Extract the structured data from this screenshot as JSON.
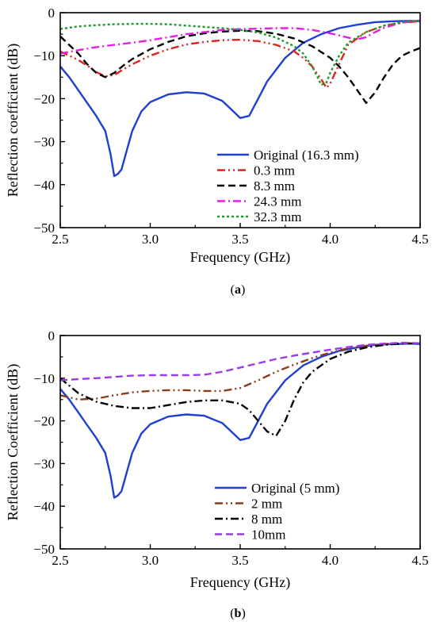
{
  "chart_data": [
    {
      "type": "line",
      "caption_letter": "a",
      "xlabel": "Frequency (GHz)",
      "ylabel": "Reflection coefficient (dB)",
      "xlim": [
        2.5,
        4.5
      ],
      "ylim": [
        -50,
        0
      ],
      "xticks": [
        "2.5",
        "3.0",
        "3.5",
        "4.0",
        "4.5"
      ],
      "yticks": [
        "0",
        "−10",
        "−20",
        "−30",
        "−40",
        "−50"
      ],
      "xtick_values": [
        2.5,
        3.0,
        3.5,
        4.0,
        4.5
      ],
      "ytick_values": [
        0,
        -10,
        -20,
        -30,
        -40,
        -50
      ],
      "legend_position": "bottom-right",
      "series": [
        {
          "name": "Original (16.3 mm)",
          "color": "#1f3fd1",
          "dash": "solid",
          "points": [
            [
              2.5,
              -12.5
            ],
            [
              2.55,
              -15
            ],
            [
              2.6,
              -18
            ],
            [
              2.65,
              -21
            ],
            [
              2.7,
              -24
            ],
            [
              2.75,
              -27.5
            ],
            [
              2.78,
              -33
            ],
            [
              2.8,
              -38
            ],
            [
              2.82,
              -37.5
            ],
            [
              2.84,
              -36.5
            ],
            [
              2.87,
              -32
            ],
            [
              2.9,
              -27.5
            ],
            [
              2.95,
              -23
            ],
            [
              3.0,
              -20.8
            ],
            [
              3.1,
              -19
            ],
            [
              3.2,
              -18.5
            ],
            [
              3.3,
              -18.8
            ],
            [
              3.4,
              -20.5
            ],
            [
              3.45,
              -22.5
            ],
            [
              3.5,
              -24.5
            ],
            [
              3.55,
              -24
            ],
            [
              3.6,
              -20
            ],
            [
              3.65,
              -16
            ],
            [
              3.75,
              -10.5
            ],
            [
              3.85,
              -7
            ],
            [
              3.95,
              -5
            ],
            [
              4.05,
              -3.6
            ],
            [
              4.15,
              -2.8
            ],
            [
              4.25,
              -2.2
            ],
            [
              4.35,
              -2
            ],
            [
              4.45,
              -1.9
            ],
            [
              4.5,
              -2
            ]
          ]
        },
        {
          "name": "0.3 mm",
          "color": "#e0231e",
          "dash": "dashdotdot",
          "points": [
            [
              2.5,
              -9
            ],
            [
              2.55,
              -10
            ],
            [
              2.6,
              -11
            ],
            [
              2.65,
              -12.3
            ],
            [
              2.7,
              -13.8
            ],
            [
              2.75,
              -14.8
            ],
            [
              2.8,
              -14.5
            ],
            [
              2.85,
              -13.2
            ],
            [
              2.9,
              -12
            ],
            [
              3.0,
              -10
            ],
            [
              3.1,
              -8.5
            ],
            [
              3.2,
              -7.4
            ],
            [
              3.3,
              -6.8
            ],
            [
              3.4,
              -6.4
            ],
            [
              3.5,
              -6.3
            ],
            [
              3.6,
              -6.6
            ],
            [
              3.7,
              -7.5
            ],
            [
              3.8,
              -9
            ],
            [
              3.85,
              -10.5
            ],
            [
              3.9,
              -12.5
            ],
            [
              3.95,
              -15.5
            ],
            [
              3.98,
              -17.5
            ],
            [
              4.0,
              -16.5
            ],
            [
              4.05,
              -12
            ],
            [
              4.1,
              -7.5
            ],
            [
              4.2,
              -4.5
            ],
            [
              4.3,
              -3
            ],
            [
              4.4,
              -2.3
            ],
            [
              4.5,
              -2
            ]
          ]
        },
        {
          "name": "8.3 mm",
          "color": "#000000",
          "dash": "dash",
          "points": [
            [
              2.5,
              -5.5
            ],
            [
              2.55,
              -7.5
            ],
            [
              2.6,
              -9.5
            ],
            [
              2.65,
              -12
            ],
            [
              2.7,
              -14
            ],
            [
              2.75,
              -15
            ],
            [
              2.8,
              -14
            ],
            [
              2.85,
              -12.3
            ],
            [
              2.9,
              -10.8
            ],
            [
              3.0,
              -8.5
            ],
            [
              3.1,
              -6.8
            ],
            [
              3.2,
              -5.5
            ],
            [
              3.3,
              -4.8
            ],
            [
              3.4,
              -4.4
            ],
            [
              3.5,
              -4.2
            ],
            [
              3.6,
              -4.3
            ],
            [
              3.7,
              -4.9
            ],
            [
              3.8,
              -6
            ],
            [
              3.9,
              -7.8
            ],
            [
              4.0,
              -10.5
            ],
            [
              4.05,
              -12.5
            ],
            [
              4.1,
              -15
            ],
            [
              4.15,
              -18
            ],
            [
              4.2,
              -21
            ],
            [
              4.25,
              -18.5
            ],
            [
              4.3,
              -15
            ],
            [
              4.35,
              -12
            ],
            [
              4.4,
              -10
            ],
            [
              4.45,
              -9
            ],
            [
              4.5,
              -8.2
            ]
          ]
        },
        {
          "name": "24.3 mm",
          "color": "#e61ee6",
          "dash": "dashdot",
          "points": [
            [
              2.5,
              -9.5
            ],
            [
              2.6,
              -8.7
            ],
            [
              2.7,
              -8
            ],
            [
              2.8,
              -7.5
            ],
            [
              2.9,
              -7
            ],
            [
              3.0,
              -6.4
            ],
            [
              3.1,
              -5.7
            ],
            [
              3.2,
              -5
            ],
            [
              3.3,
              -4.5
            ],
            [
              3.4,
              -4
            ],
            [
              3.5,
              -3.8
            ],
            [
              3.6,
              -3.7
            ],
            [
              3.7,
              -3.6
            ],
            [
              3.8,
              -3.6
            ],
            [
              3.9,
              -4
            ],
            [
              4.0,
              -4.8
            ],
            [
              4.1,
              -5.8
            ],
            [
              4.15,
              -6.2
            ],
            [
              4.2,
              -5.7
            ],
            [
              4.25,
              -4.5
            ],
            [
              4.3,
              -3.5
            ],
            [
              4.4,
              -2.3
            ],
            [
              4.5,
              -1.8
            ]
          ]
        },
        {
          "name": "32.3 mm",
          "color": "#1f9a2e",
          "dash": "dot",
          "points": [
            [
              2.5,
              -3.8
            ],
            [
              2.6,
              -3.2
            ],
            [
              2.7,
              -2.9
            ],
            [
              2.8,
              -2.7
            ],
            [
              2.9,
              -2.6
            ],
            [
              3.0,
              -2.6
            ],
            [
              3.1,
              -2.7
            ],
            [
              3.2,
              -3
            ],
            [
              3.3,
              -3.3
            ],
            [
              3.4,
              -3.6
            ],
            [
              3.5,
              -4
            ],
            [
              3.6,
              -4.6
            ],
            [
              3.7,
              -5.8
            ],
            [
              3.8,
              -7.8
            ],
            [
              3.85,
              -9.5
            ],
            [
              3.9,
              -12.5
            ],
            [
              3.93,
              -15
            ],
            [
              3.95,
              -16.8
            ],
            [
              3.98,
              -16.2
            ],
            [
              4.0,
              -14
            ],
            [
              4.05,
              -10
            ],
            [
              4.1,
              -7
            ],
            [
              4.2,
              -4.5
            ],
            [
              4.3,
              -3
            ],
            [
              4.4,
              -2.2
            ],
            [
              4.5,
              -1.8
            ]
          ]
        }
      ]
    },
    {
      "type": "line",
      "caption_letter": "b",
      "xlabel": "Frequency (GHz)",
      "ylabel": "Reflection Coefficient (dB)",
      "xlim": [
        2.5,
        4.5
      ],
      "ylim": [
        -50,
        0
      ],
      "xticks": [
        "2.5",
        "3.0",
        "3.5",
        "4.0",
        "4.5"
      ],
      "yticks": [
        "0",
        "−10",
        "−20",
        "−30",
        "−40",
        "−50"
      ],
      "xtick_values": [
        2.5,
        3.0,
        3.5,
        4.0,
        4.5
      ],
      "ytick_values": [
        0,
        -10,
        -20,
        -30,
        -40,
        -50
      ],
      "legend_position": "bottom-right",
      "series": [
        {
          "name": "Original (5 mm)",
          "color": "#1f3fd1",
          "dash": "solid",
          "points": [
            [
              2.5,
              -12.5
            ],
            [
              2.55,
              -15
            ],
            [
              2.6,
              -18
            ],
            [
              2.65,
              -21
            ],
            [
              2.7,
              -24
            ],
            [
              2.75,
              -27.5
            ],
            [
              2.78,
              -33
            ],
            [
              2.8,
              -38
            ],
            [
              2.82,
              -37.5
            ],
            [
              2.84,
              -36.5
            ],
            [
              2.87,
              -32
            ],
            [
              2.9,
              -27.5
            ],
            [
              2.95,
              -23
            ],
            [
              3.0,
              -20.8
            ],
            [
              3.1,
              -19
            ],
            [
              3.2,
              -18.5
            ],
            [
              3.3,
              -18.8
            ],
            [
              3.4,
              -20.5
            ],
            [
              3.45,
              -22.5
            ],
            [
              3.5,
              -24.5
            ],
            [
              3.55,
              -24
            ],
            [
              3.6,
              -20
            ],
            [
              3.65,
              -16
            ],
            [
              3.75,
              -10.5
            ],
            [
              3.85,
              -7
            ],
            [
              3.95,
              -5
            ],
            [
              4.05,
              -3.6
            ],
            [
              4.15,
              -2.8
            ],
            [
              4.25,
              -2.2
            ],
            [
              4.35,
              -2
            ],
            [
              4.45,
              -1.9
            ],
            [
              4.5,
              -2
            ]
          ]
        },
        {
          "name": "2 mm",
          "color": "#8b3a1a",
          "dash": "dashdotdot",
          "points": [
            [
              2.5,
              -14
            ],
            [
              2.6,
              -15
            ],
            [
              2.7,
              -14.8
            ],
            [
              2.8,
              -14
            ],
            [
              2.9,
              -13.3
            ],
            [
              3.0,
              -13
            ],
            [
              3.1,
              -12.8
            ],
            [
              3.2,
              -12.8
            ],
            [
              3.3,
              -13
            ],
            [
              3.4,
              -13
            ],
            [
              3.5,
              -12.3
            ],
            [
              3.6,
              -10.5
            ],
            [
              3.7,
              -8.5
            ],
            [
              3.8,
              -6.8
            ],
            [
              3.9,
              -5.3
            ],
            [
              4.0,
              -4
            ],
            [
              4.1,
              -3
            ],
            [
              4.2,
              -2.4
            ],
            [
              4.3,
              -2
            ],
            [
              4.4,
              -1.8
            ],
            [
              4.5,
              -1.8
            ]
          ]
        },
        {
          "name": "8 mm",
          "color": "#000000",
          "dash": "dashdot",
          "points": [
            [
              2.5,
              -10
            ],
            [
              2.6,
              -13.5
            ],
            [
              2.7,
              -15.5
            ],
            [
              2.8,
              -16.5
            ],
            [
              2.9,
              -17
            ],
            [
              3.0,
              -17
            ],
            [
              3.1,
              -16.3
            ],
            [
              3.2,
              -15.6
            ],
            [
              3.3,
              -15.2
            ],
            [
              3.4,
              -15.2
            ],
            [
              3.5,
              -16
            ],
            [
              3.55,
              -17.5
            ],
            [
              3.6,
              -20
            ],
            [
              3.65,
              -22.5
            ],
            [
              3.7,
              -23.5
            ],
            [
              3.75,
              -20
            ],
            [
              3.8,
              -15
            ],
            [
              3.85,
              -11
            ],
            [
              3.9,
              -8.5
            ],
            [
              4.0,
              -5.5
            ],
            [
              4.1,
              -3.8
            ],
            [
              4.2,
              -2.8
            ],
            [
              4.3,
              -2.2
            ],
            [
              4.4,
              -1.9
            ],
            [
              4.5,
              -1.8
            ]
          ]
        },
        {
          "name": "10mm",
          "color": "#9b3be6",
          "dash": "dash",
          "points": [
            [
              2.5,
              -10.5
            ],
            [
              2.6,
              -10.2
            ],
            [
              2.7,
              -10
            ],
            [
              2.8,
              -9.7
            ],
            [
              2.9,
              -9.4
            ],
            [
              3.0,
              -9.3
            ],
            [
              3.1,
              -9.3
            ],
            [
              3.2,
              -9.3
            ],
            [
              3.3,
              -9.2
            ],
            [
              3.4,
              -8.5
            ],
            [
              3.5,
              -7.5
            ],
            [
              3.6,
              -6.5
            ],
            [
              3.7,
              -5.5
            ],
            [
              3.8,
              -4.7
            ],
            [
              3.9,
              -4
            ],
            [
              4.0,
              -3.3
            ],
            [
              4.1,
              -2.7
            ],
            [
              4.2,
              -2.2
            ],
            [
              4.3,
              -1.9
            ],
            [
              4.4,
              -1.7
            ],
            [
              4.5,
              -1.8
            ]
          ]
        }
      ]
    }
  ]
}
